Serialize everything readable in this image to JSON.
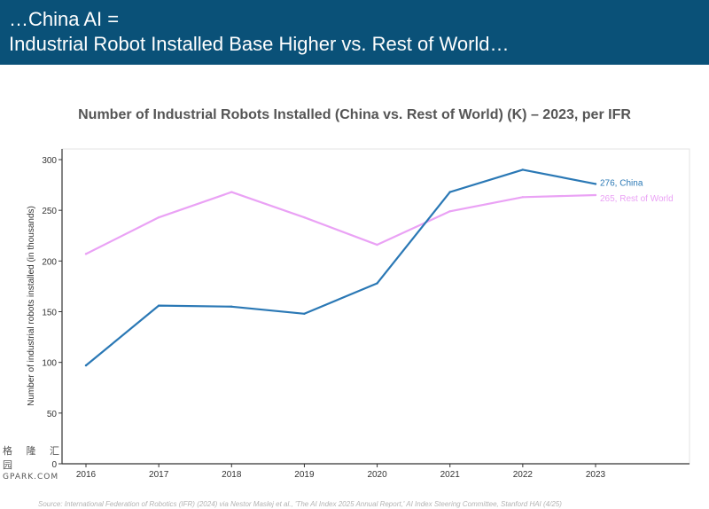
{
  "slide": {
    "title_line1": "…China AI =",
    "title_line2": "Industrial Robot Installed Base Higher vs. Rest of World…",
    "source": "Source: International Federation of Robotics (IFR) (2024) via Nestor Maslej et al., 'The AI Index 2025 Annual Report,' AI Index Steering Committee, Stanford HAI (4/25)",
    "watermark_line1": "格 隆 汇 园",
    "watermark_line2": "GPARK.COM"
  },
  "colors": {
    "banner": "#0a5178",
    "china": "#2a78b5",
    "rest_of_world": "#eaa2f5"
  },
  "chart_data": {
    "type": "line",
    "title": "Number of Industrial Robots Installed (China vs. Rest of World) (K) – 2023, per IFR",
    "xlabel": "",
    "ylabel": "Number of industrial robots installed (in thousands)",
    "x": [
      2016,
      2017,
      2018,
      2019,
      2020,
      2021,
      2022,
      2023
    ],
    "ylim": [
      0,
      300
    ],
    "yticks": [
      0,
      50,
      100,
      150,
      200,
      250,
      300
    ],
    "grid": false,
    "series": [
      {
        "name": "China",
        "end_label": "276",
        "color": "#2a78b5",
        "values": [
          97,
          156,
          155,
          148,
          178,
          268,
          290,
          276
        ]
      },
      {
        "name": "Rest of World",
        "end_label": "265",
        "color": "#eaa2f5",
        "values": [
          207,
          243,
          268,
          243,
          216,
          249,
          263,
          265
        ]
      }
    ]
  }
}
